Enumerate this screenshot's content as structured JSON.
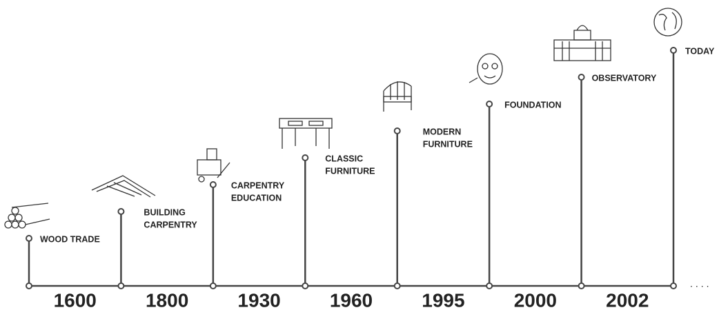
{
  "years": [
    "1600",
    "1800",
    "1930",
    "1960",
    "1995",
    "2000",
    "2002"
  ],
  "milestones": [
    {
      "lines": [
        "WOOD TRADE"
      ]
    },
    {
      "lines": [
        "BUILDING",
        "CARPENTRY"
      ]
    },
    {
      "lines": [
        "CARPENTRY",
        "EDUCATION"
      ]
    },
    {
      "lines": [
        "CLASSIC",
        "FURNITURE"
      ]
    },
    {
      "lines": [
        "MODERN",
        "FURNITURE"
      ]
    },
    {
      "lines": [
        "FOUNDATION"
      ]
    },
    {
      "lines": [
        "OBSERVATORY"
      ]
    },
    {
      "lines": [
        "TODAY"
      ]
    }
  ]
}
